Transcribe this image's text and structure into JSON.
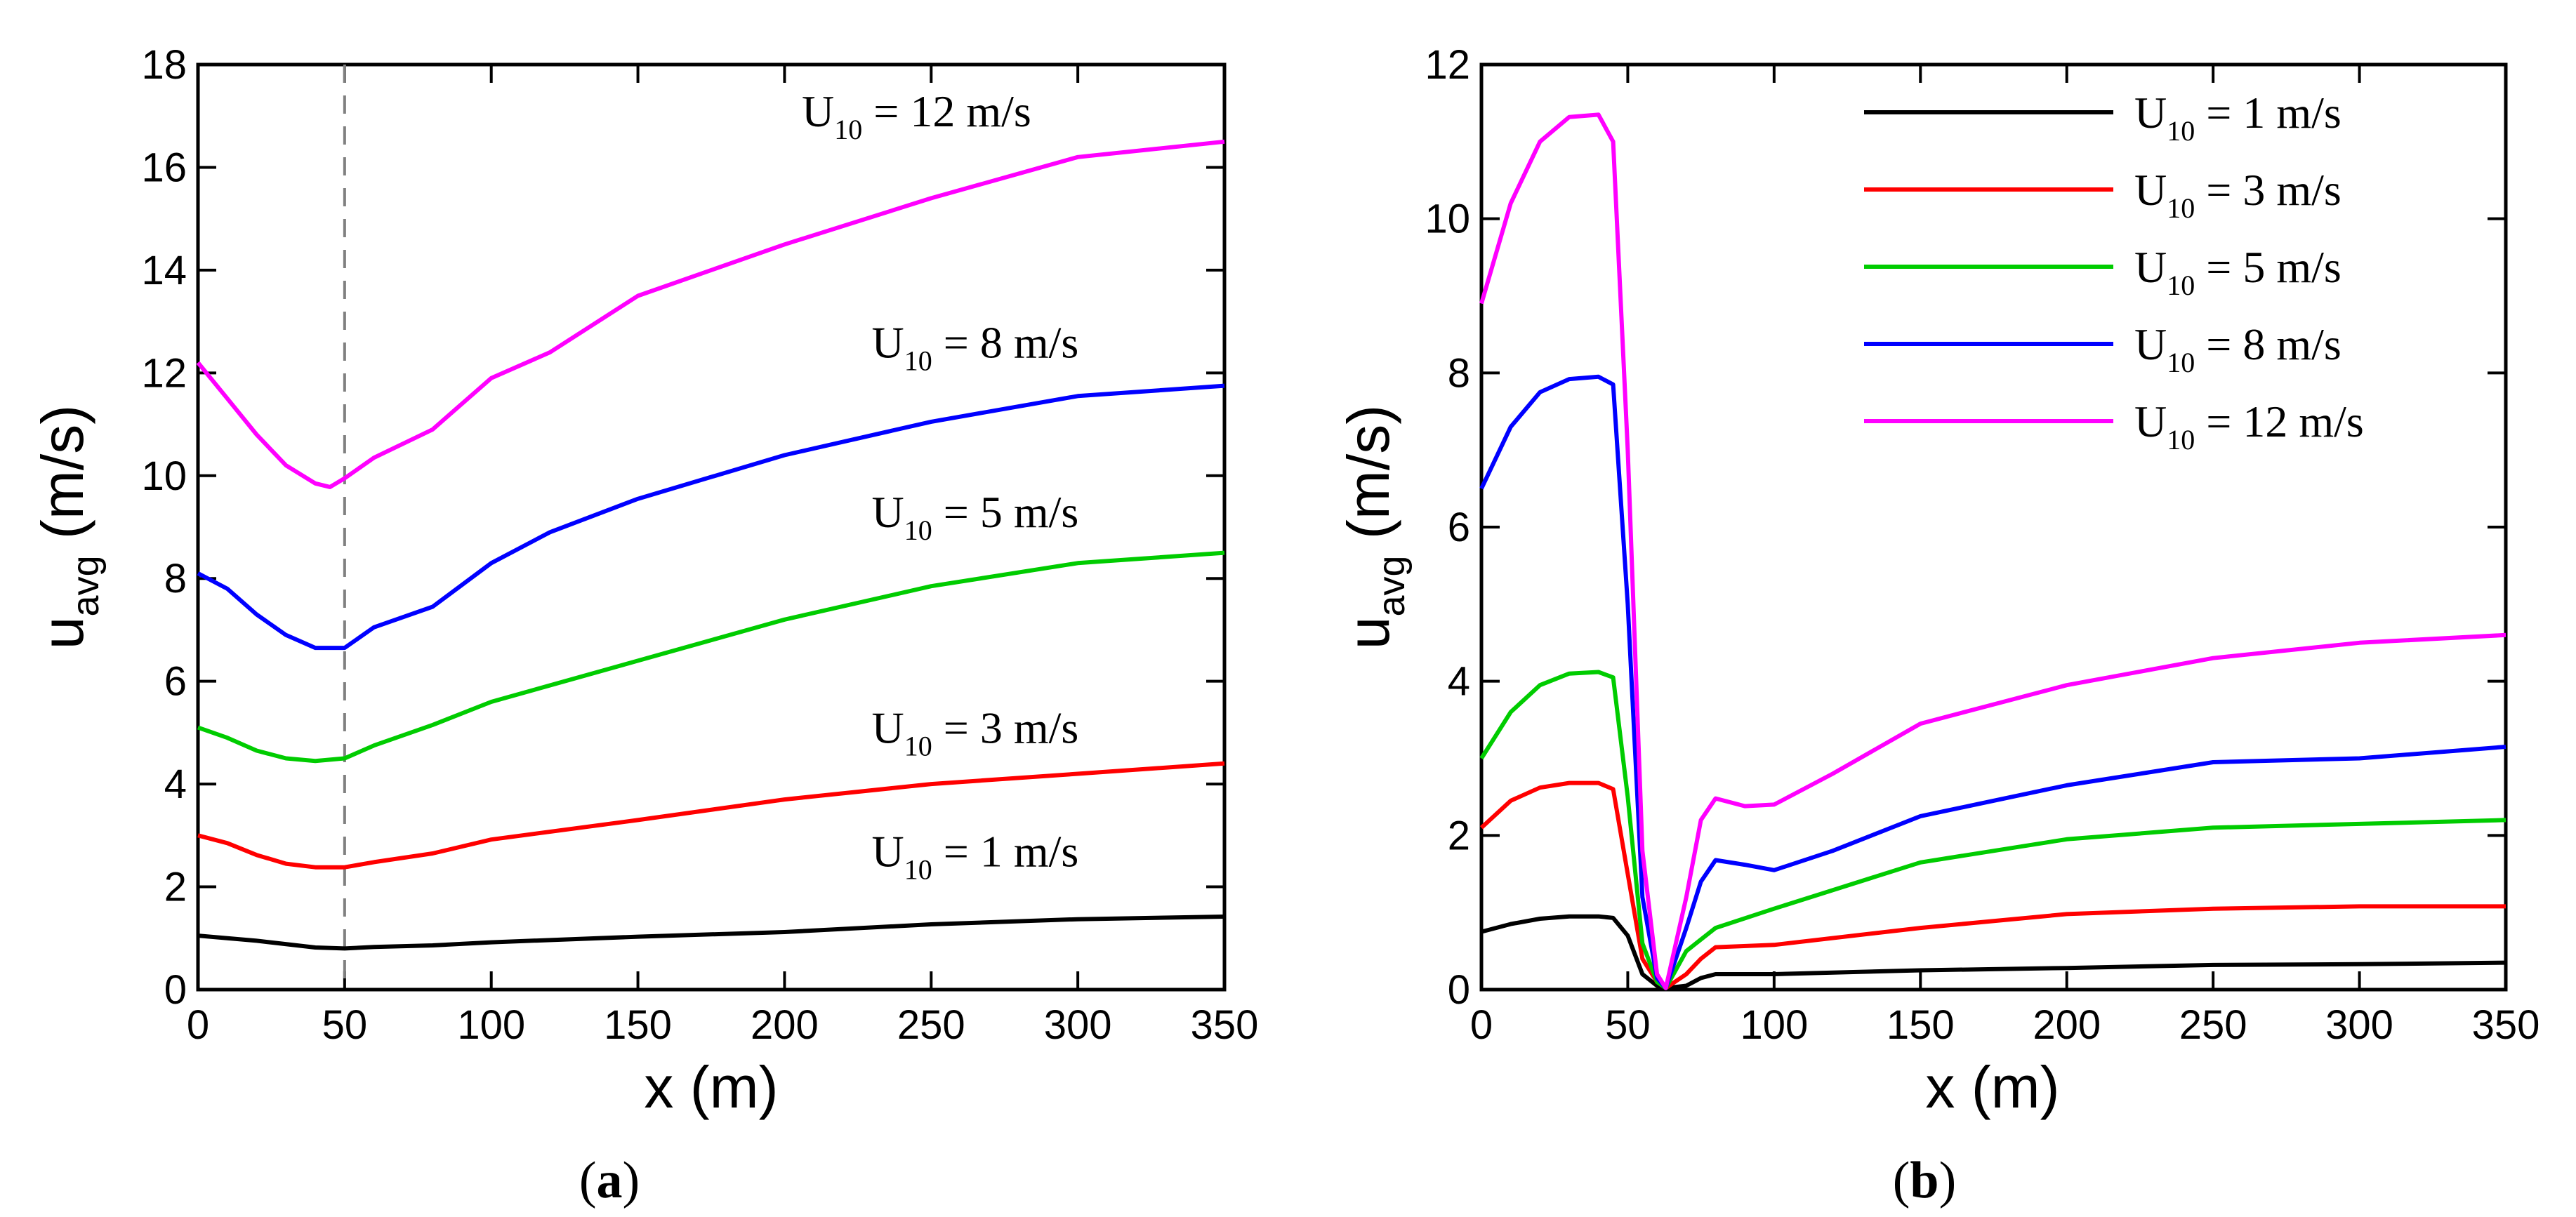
{
  "chart_data": [
    {
      "type": "line",
      "caption": "a",
      "xlabel": "x (m)",
      "ylabel_main": "u",
      "ylabel_sub": "avg",
      "ylabel_unit": "(m/s)",
      "xlim": [
        0,
        350
      ],
      "ylim": [
        0,
        18
      ],
      "xticks": [
        0,
        50,
        100,
        150,
        200,
        250,
        300,
        350
      ],
      "yticks": [
        0,
        2,
        4,
        6,
        8,
        10,
        12,
        14,
        16,
        18
      ],
      "vline_x": 50,
      "legend": "inline labels",
      "series": [
        {
          "name": "U10 = 1 m/s",
          "color": "#000000",
          "label": {
            "pre": "U",
            "sub": "10",
            "post": " = 1 m/s",
            "anchor_x": 265,
            "anchor_y": 2.4
          },
          "x": [
            0,
            20,
            40,
            50,
            60,
            80,
            100,
            150,
            200,
            250,
            300,
            350
          ],
          "y": [
            1.05,
            0.95,
            0.82,
            0.8,
            0.83,
            0.86,
            0.92,
            1.03,
            1.12,
            1.27,
            1.37,
            1.42
          ]
        },
        {
          "name": "U10 = 3 m/s",
          "color": "#ff0000",
          "label": {
            "pre": "U",
            "sub": "10",
            "post": " = 3 m/s",
            "anchor_x": 265,
            "anchor_y": 4.8
          },
          "x": [
            0,
            10,
            20,
            30,
            40,
            50,
            60,
            80,
            100,
            150,
            200,
            250,
            300,
            350
          ],
          "y": [
            3.0,
            2.85,
            2.62,
            2.45,
            2.38,
            2.38,
            2.48,
            2.65,
            2.92,
            3.3,
            3.7,
            4.0,
            4.2,
            4.4
          ]
        },
        {
          "name": "U10 = 5 m/s",
          "color": "#00cc00",
          "label": {
            "pre": "U",
            "sub": "10",
            "post": " = 5 m/s",
            "anchor_x": 265,
            "anchor_y": 9.0
          },
          "x": [
            0,
            10,
            20,
            30,
            40,
            50,
            60,
            80,
            100,
            150,
            200,
            250,
            300,
            350
          ],
          "y": [
            5.1,
            4.9,
            4.65,
            4.5,
            4.45,
            4.5,
            4.75,
            5.15,
            5.6,
            6.4,
            7.2,
            7.85,
            8.3,
            8.5
          ]
        },
        {
          "name": "U10 = 8 m/s",
          "color": "#0000ff",
          "label": {
            "pre": "U",
            "sub": "10",
            "post": " = 8 m/s",
            "anchor_x": 265,
            "anchor_y": 12.3
          },
          "x": [
            0,
            10,
            20,
            30,
            40,
            50,
            60,
            80,
            100,
            120,
            150,
            200,
            250,
            300,
            350
          ],
          "y": [
            8.1,
            7.8,
            7.3,
            6.9,
            6.65,
            6.65,
            7.05,
            7.45,
            8.3,
            8.9,
            9.55,
            10.4,
            11.05,
            11.55,
            11.75
          ]
        },
        {
          "name": "U10 = 12 m/s",
          "color": "#ff00ff",
          "label": {
            "pre": "U",
            "sub": "10",
            "post": " = 12 m/s",
            "anchor_x": 245,
            "anchor_y": 16.8
          },
          "x": [
            0,
            10,
            20,
            30,
            40,
            45,
            50,
            60,
            80,
            100,
            120,
            150,
            200,
            250,
            300,
            350
          ],
          "y": [
            12.2,
            11.5,
            10.8,
            10.2,
            9.85,
            9.78,
            9.95,
            10.35,
            10.9,
            11.9,
            12.4,
            13.5,
            14.5,
            15.4,
            16.2,
            16.5
          ]
        }
      ]
    },
    {
      "type": "line",
      "caption": "b",
      "xlabel": "x (m)",
      "ylabel_main": "u",
      "ylabel_sub": "avg",
      "ylabel_unit": "(m/s)",
      "xlim": [
        0,
        350
      ],
      "ylim": [
        0,
        12
      ],
      "xticks": [
        0,
        50,
        100,
        150,
        200,
        250,
        300,
        350
      ],
      "yticks": [
        0,
        2,
        4,
        6,
        8,
        10,
        12
      ],
      "legend": "top-right",
      "series": [
        {
          "name": "U10 = 1 m/s",
          "color": "#000000",
          "label": {
            "pre": "U",
            "sub": "10",
            "post": " = 1 m/s"
          },
          "x": [
            0,
            10,
            20,
            30,
            40,
            45,
            50,
            55,
            60,
            63,
            70,
            75,
            80,
            100,
            150,
            200,
            250,
            300,
            350
          ],
          "y": [
            0.75,
            0.85,
            0.92,
            0.95,
            0.95,
            0.93,
            0.7,
            0.2,
            0.05,
            0.02,
            0.05,
            0.15,
            0.2,
            0.2,
            0.25,
            0.28,
            0.32,
            0.33,
            0.35
          ]
        },
        {
          "name": "U10 = 3 m/s",
          "color": "#ff0000",
          "label": {
            "pre": "U",
            "sub": "10",
            "post": " = 3 m/s"
          },
          "x": [
            0,
            10,
            20,
            30,
            40,
            45,
            50,
            55,
            60,
            63,
            70,
            75,
            80,
            100,
            150,
            200,
            250,
            300,
            350
          ],
          "y": [
            2.1,
            2.45,
            2.62,
            2.68,
            2.68,
            2.6,
            1.5,
            0.4,
            0.1,
            0.02,
            0.2,
            0.4,
            0.55,
            0.58,
            0.8,
            0.98,
            1.05,
            1.08,
            1.08
          ]
        },
        {
          "name": "U10 = 5 m/s",
          "color": "#00cc00",
          "label": {
            "pre": "U",
            "sub": "10",
            "post": " = 5 m/s"
          },
          "x": [
            0,
            10,
            20,
            30,
            40,
            45,
            50,
            55,
            60,
            63,
            70,
            80,
            100,
            150,
            200,
            250,
            300,
            350
          ],
          "y": [
            3.0,
            3.6,
            3.95,
            4.1,
            4.12,
            4.05,
            2.5,
            0.6,
            0.1,
            0.02,
            0.5,
            0.8,
            1.05,
            1.65,
            1.95,
            2.1,
            2.15,
            2.2
          ]
        },
        {
          "name": "U10 = 8 m/s",
          "color": "#0000ff",
          "label": {
            "pre": "U",
            "sub": "10",
            "post": " = 8 m/s"
          },
          "x": [
            0,
            10,
            20,
            30,
            40,
            45,
            50,
            55,
            60,
            63,
            70,
            75,
            80,
            90,
            100,
            120,
            150,
            200,
            250,
            300,
            350
          ],
          "y": [
            6.5,
            7.3,
            7.75,
            7.92,
            7.95,
            7.85,
            5.0,
            1.2,
            0.15,
            0.02,
            0.8,
            1.4,
            1.68,
            1.62,
            1.55,
            1.8,
            2.25,
            2.65,
            2.95,
            3.0,
            3.15
          ]
        },
        {
          "name": "U10 = 12 m/s",
          "color": "#ff00ff",
          "label": {
            "pre": "U",
            "sub": "10",
            "post": " = 12 m/s"
          },
          "x": [
            0,
            10,
            20,
            30,
            40,
            45,
            50,
            55,
            60,
            63,
            70,
            75,
            80,
            90,
            100,
            120,
            150,
            200,
            250,
            300,
            350
          ],
          "y": [
            8.9,
            10.2,
            11.0,
            11.32,
            11.35,
            11.0,
            7.0,
            1.8,
            0.2,
            0.02,
            1.2,
            2.2,
            2.48,
            2.38,
            2.4,
            2.8,
            3.45,
            3.95,
            4.3,
            4.5,
            4.6
          ]
        }
      ]
    }
  ]
}
